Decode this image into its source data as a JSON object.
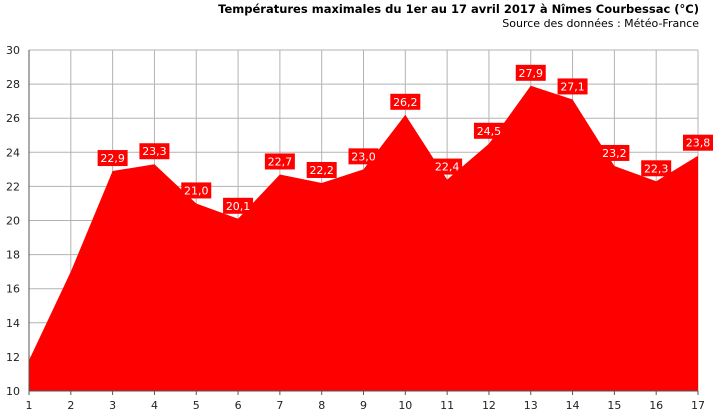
{
  "chart_data": {
    "type": "area",
    "title": "Températures maximales du 1er au 17 avril 2017 à Nîmes Courbessac (°C)",
    "subtitle": "Source des données : Météo-France",
    "xlabel": "",
    "ylabel": "",
    "x": [
      1,
      2,
      3,
      4,
      5,
      6,
      7,
      8,
      9,
      10,
      11,
      12,
      13,
      14,
      15,
      16,
      17
    ],
    "values": [
      11.8,
      17.0,
      22.9,
      23.3,
      21.0,
      20.1,
      22.7,
      22.2,
      23.0,
      26.2,
      22.4,
      24.5,
      27.9,
      27.1,
      23.2,
      22.3,
      23.8
    ],
    "labels": [
      "",
      "",
      "22,9",
      "23,3",
      "21,0",
      "20,1",
      "22,7",
      "22,2",
      "23,0",
      "26,2",
      "22,4",
      "24,5",
      "27,9",
      "27,1",
      "23,2",
      "22,3",
      "23,8"
    ],
    "ylim": [
      10,
      30
    ],
    "yticks": [
      10,
      12,
      14,
      16,
      18,
      20,
      22,
      24,
      26,
      28,
      30
    ],
    "grid": true,
    "fill_color": "#ff0000",
    "label_bg_color": "#ff0000",
    "grid_color": "#b3b3b3"
  }
}
